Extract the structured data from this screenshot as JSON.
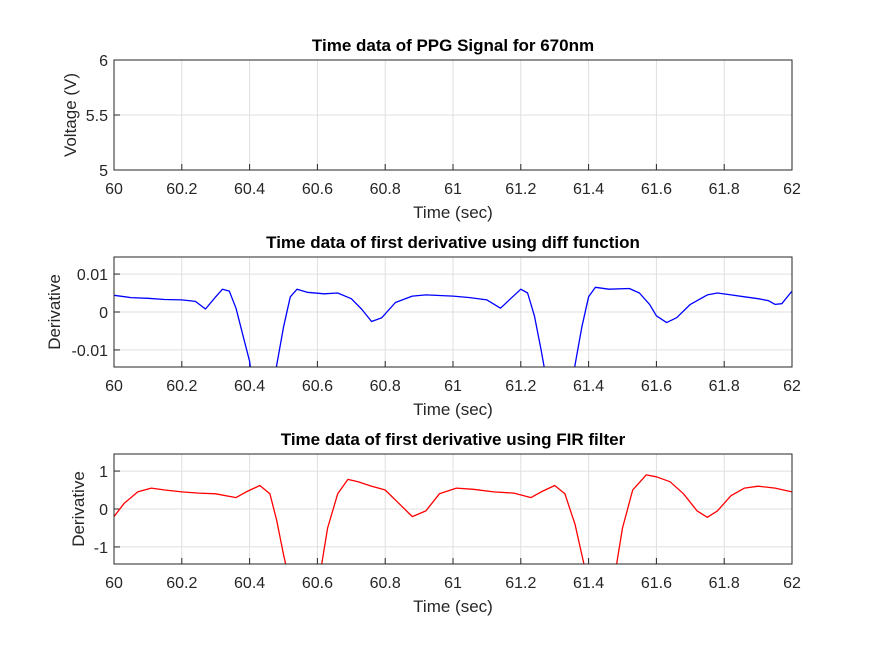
{
  "chart_data": [
    {
      "type": "line",
      "title": "Time data of PPG Signal for 670nm",
      "xlabel": "Time (sec)",
      "ylabel": "Voltage (V)",
      "xlim": [
        60,
        62
      ],
      "ylim": [
        5,
        6
      ],
      "xticks": [
        "60",
        "60.2",
        "60.4",
        "60.6",
        "60.8",
        "61",
        "61.2",
        "61.4",
        "61.6",
        "61.8",
        "62"
      ],
      "yticks": [
        "5",
        "5.5",
        "6"
      ],
      "grid": true,
      "series": [
        {
          "color": "#0000ff",
          "points": []
        }
      ]
    },
    {
      "type": "line",
      "title": "Time data of first derivative using diff function",
      "xlabel": "Time (sec)",
      "ylabel": "Derivative",
      "xlim": [
        60,
        62
      ],
      "ylim": [
        -0.0145,
        0.0145
      ],
      "xticks": [
        "60",
        "60.2",
        "60.4",
        "60.6",
        "60.8",
        "61",
        "61.2",
        "61.4",
        "61.6",
        "61.8",
        "62"
      ],
      "yticks": [
        "-0.01",
        "0",
        "0.01"
      ],
      "grid": true,
      "series": [
        {
          "color": "#0000ff",
          "points": [
            [
              60.0,
              0.0044
            ],
            [
              60.05,
              0.0038
            ],
            [
              60.1,
              0.0036
            ],
            [
              60.15,
              0.0033
            ],
            [
              60.2,
              0.0032
            ],
            [
              60.24,
              0.0028
            ],
            [
              60.27,
              0.0008
            ],
            [
              60.3,
              0.004
            ],
            [
              60.32,
              0.006
            ],
            [
              60.34,
              0.0055
            ],
            [
              60.36,
              0.001
            ],
            [
              60.38,
              -0.006
            ],
            [
              60.4,
              -0.013
            ],
            [
              60.41,
              -0.02
            ],
            [
              60.47,
              -0.02
            ],
            [
              60.48,
              -0.014
            ],
            [
              60.5,
              -0.004
            ],
            [
              60.52,
              0.004
            ],
            [
              60.54,
              0.006
            ],
            [
              60.57,
              0.0052
            ],
            [
              60.62,
              0.0048
            ],
            [
              60.66,
              0.005
            ],
            [
              60.7,
              0.0035
            ],
            [
              60.73,
              0.0008
            ],
            [
              60.76,
              -0.0025
            ],
            [
              60.79,
              -0.0015
            ],
            [
              60.83,
              0.0025
            ],
            [
              60.88,
              0.0042
            ],
            [
              60.92,
              0.0045
            ],
            [
              61.0,
              0.0042
            ],
            [
              61.05,
              0.0038
            ],
            [
              61.1,
              0.0032
            ],
            [
              61.14,
              0.001
            ],
            [
              61.17,
              0.0035
            ],
            [
              61.2,
              0.006
            ],
            [
              61.22,
              0.005
            ],
            [
              61.24,
              -0.001
            ],
            [
              61.26,
              -0.01
            ],
            [
              61.28,
              -0.02
            ],
            [
              61.35,
              -0.02
            ],
            [
              61.36,
              -0.014
            ],
            [
              61.38,
              -0.004
            ],
            [
              61.4,
              0.004
            ],
            [
              61.42,
              0.0065
            ],
            [
              61.46,
              0.006
            ],
            [
              61.52,
              0.0062
            ],
            [
              61.55,
              0.005
            ],
            [
              61.58,
              0.002
            ],
            [
              61.6,
              -0.001
            ],
            [
              61.63,
              -0.0028
            ],
            [
              61.66,
              -0.0015
            ],
            [
              61.7,
              0.002
            ],
            [
              61.75,
              0.0045
            ],
            [
              61.78,
              0.005
            ],
            [
              61.82,
              0.0045
            ],
            [
              61.86,
              0.004
            ],
            [
              61.9,
              0.0035
            ],
            [
              61.93,
              0.003
            ],
            [
              61.95,
              0.002
            ],
            [
              61.97,
              0.0022
            ],
            [
              62.0,
              0.0055
            ]
          ]
        }
      ]
    },
    {
      "type": "line",
      "title": "Time data of first derivative using FIR filter",
      "xlabel": "Time (sec)",
      "ylabel": "Derivative",
      "xlim": [
        60,
        62
      ],
      "ylim": [
        -1.45,
        1.45
      ],
      "xticks": [
        "60",
        "60.2",
        "60.4",
        "60.6",
        "60.8",
        "61",
        "61.2",
        "61.4",
        "61.6",
        "61.8",
        "62"
      ],
      "yticks": [
        "-1",
        "0",
        "1"
      ],
      "grid": true,
      "series": [
        {
          "color": "#ff0000",
          "points": [
            [
              60.0,
              -0.2
            ],
            [
              60.03,
              0.15
            ],
            [
              60.07,
              0.45
            ],
            [
              60.11,
              0.55
            ],
            [
              60.15,
              0.5
            ],
            [
              60.2,
              0.45
            ],
            [
              60.25,
              0.42
            ],
            [
              60.3,
              0.4
            ],
            [
              60.36,
              0.3
            ],
            [
              60.39,
              0.45
            ],
            [
              60.43,
              0.62
            ],
            [
              60.46,
              0.4
            ],
            [
              60.48,
              -0.3
            ],
            [
              60.5,
              -1.2
            ],
            [
              60.51,
              -1.6
            ],
            [
              60.61,
              -1.6
            ],
            [
              60.63,
              -0.5
            ],
            [
              60.66,
              0.4
            ],
            [
              60.69,
              0.78
            ],
            [
              60.72,
              0.72
            ],
            [
              60.76,
              0.6
            ],
            [
              60.8,
              0.5
            ],
            [
              60.84,
              0.15
            ],
            [
              60.88,
              -0.2
            ],
            [
              60.92,
              -0.05
            ],
            [
              60.96,
              0.4
            ],
            [
              61.01,
              0.55
            ],
            [
              61.06,
              0.52
            ],
            [
              61.12,
              0.45
            ],
            [
              61.18,
              0.42
            ],
            [
              61.23,
              0.3
            ],
            [
              61.26,
              0.45
            ],
            [
              61.3,
              0.62
            ],
            [
              61.33,
              0.4
            ],
            [
              61.36,
              -0.4
            ],
            [
              61.38,
              -1.2
            ],
            [
              61.39,
              -1.6
            ],
            [
              61.48,
              -1.6
            ],
            [
              61.5,
              -0.5
            ],
            [
              61.53,
              0.5
            ],
            [
              61.57,
              0.9
            ],
            [
              61.6,
              0.85
            ],
            [
              61.64,
              0.72
            ],
            [
              61.68,
              0.4
            ],
            [
              61.72,
              -0.05
            ],
            [
              61.75,
              -0.22
            ],
            [
              61.78,
              -0.05
            ],
            [
              61.82,
              0.35
            ],
            [
              61.86,
              0.55
            ],
            [
              61.9,
              0.6
            ],
            [
              61.95,
              0.55
            ],
            [
              62.0,
              0.45
            ]
          ]
        }
      ]
    }
  ]
}
